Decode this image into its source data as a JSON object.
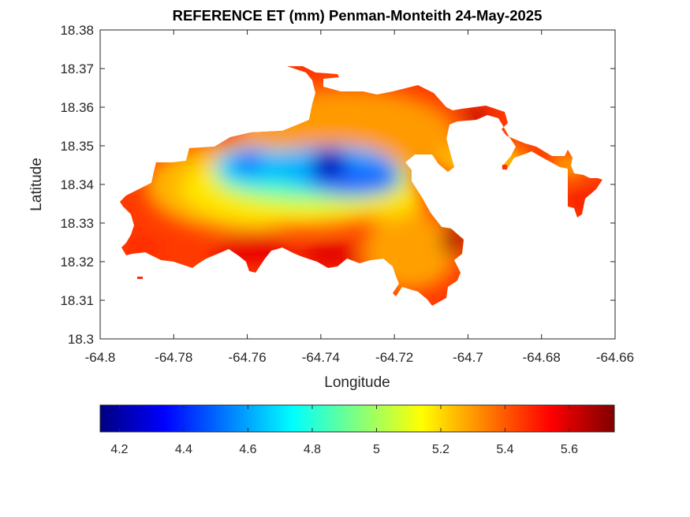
{
  "chart_data": {
    "type": "heatmap",
    "subtype": "filled-contour",
    "title": "REFERENCE ET (mm) Penman-Monteith 24-May-2025",
    "xlabel": "Longitude",
    "ylabel": "Latitude",
    "xlim": [
      -64.8,
      -64.66
    ],
    "ylim": [
      18.3,
      18.38
    ],
    "x_ticks": [
      -64.8,
      -64.78,
      -64.76,
      -64.74,
      -64.72,
      -64.7,
      -64.68,
      -64.66
    ],
    "y_ticks": [
      18.3,
      18.31,
      18.32,
      18.33,
      18.34,
      18.35,
      18.36,
      18.37,
      18.38
    ],
    "x_tick_labels": [
      "-64.8",
      "-64.78",
      "-64.76",
      "-64.74",
      "-64.72",
      "-64.7",
      "-64.68",
      "-64.66"
    ],
    "y_tick_labels": [
      "18.3",
      "18.31",
      "18.32",
      "18.33",
      "18.34",
      "18.35",
      "18.36",
      "18.37",
      "18.38"
    ],
    "grid": false,
    "colormap": "jet",
    "colorbar": {
      "orientation": "horizontal",
      "location": "below",
      "clim": [
        4.14,
        5.74
      ],
      "ticks": [
        4.2,
        4.4,
        4.6,
        4.8,
        5,
        5.2,
        5.4,
        5.6
      ],
      "tick_labels": [
        "4.2",
        "4.4",
        "4.6",
        "4.8",
        "5",
        "5.2",
        "5.4",
        "5.6"
      ]
    },
    "value_range": [
      4.14,
      5.74
    ],
    "coverage": [
      [
        -64.7923,
        18.3353,
        -64.7706,
        18.3446
      ],
      [
        -64.7706,
        18.3212,
        -64.7118,
        18.3491
      ],
      [
        -64.7598,
        18.3491,
        -64.7118,
        18.3527
      ],
      [
        -64.7467,
        18.3527,
        -64.7119,
        18.3573
      ],
      [
        -64.7327,
        18.3573,
        -64.7118,
        18.3626
      ],
      [
        -64.7523,
        18.3638,
        -64.7393,
        18.3708
      ],
      [
        -64.7098,
        18.3404,
        -64.7077,
        18.3452
      ],
      [
        -64.7144,
        18.3592,
        -64.7049,
        18.364
      ],
      [
        -64.6913,
        18.3471,
        -64.6818,
        18.3503
      ],
      [
        -64.6705,
        18.3332,
        -64.6635,
        18.3416
      ]
    ],
    "extremes": [
      {
        "lon": -64.7365,
        "lat": 18.3452,
        "value": 4.15
      },
      {
        "lon": -64.7592,
        "lat": 18.3455,
        "value": 4.55
      },
      {
        "lon": -64.7042,
        "lat": 18.3262,
        "value": 5.72
      },
      {
        "lon": -64.7022,
        "lat": 18.3613,
        "value": 5.62
      }
    ]
  }
}
